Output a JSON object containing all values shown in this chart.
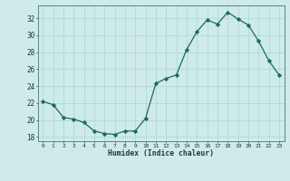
{
  "x": [
    0,
    1,
    2,
    3,
    4,
    5,
    6,
    7,
    8,
    9,
    10,
    11,
    12,
    13,
    14,
    15,
    16,
    17,
    18,
    19,
    20,
    21,
    22,
    23
  ],
  "y": [
    22.2,
    21.8,
    20.3,
    20.1,
    19.7,
    18.7,
    18.4,
    18.3,
    18.7,
    18.7,
    20.2,
    24.3,
    24.9,
    25.3,
    28.3,
    30.4,
    31.8,
    31.3,
    32.7,
    31.9,
    31.2,
    29.3,
    27.0,
    25.3
  ],
  "xlabel": "Humidex (Indice chaleur)",
  "ylim": [
    17.5,
    33.5
  ],
  "xlim": [
    -0.5,
    23.5
  ],
  "yticks": [
    18,
    20,
    22,
    24,
    26,
    28,
    30,
    32
  ],
  "xticks": [
    0,
    1,
    2,
    3,
    4,
    5,
    6,
    7,
    8,
    9,
    10,
    11,
    12,
    13,
    14,
    15,
    16,
    17,
    18,
    19,
    20,
    21,
    22,
    23
  ],
  "line_color": "#1a6b5a",
  "marker_color": "#1a6b5a",
  "bg_color": "#ceeaea",
  "grid_color": "#b0d8d8",
  "axis_color": "#5a8a7a",
  "font_color": "#1a3a3a",
  "figsize": [
    3.2,
    2.0
  ],
  "dpi": 100
}
